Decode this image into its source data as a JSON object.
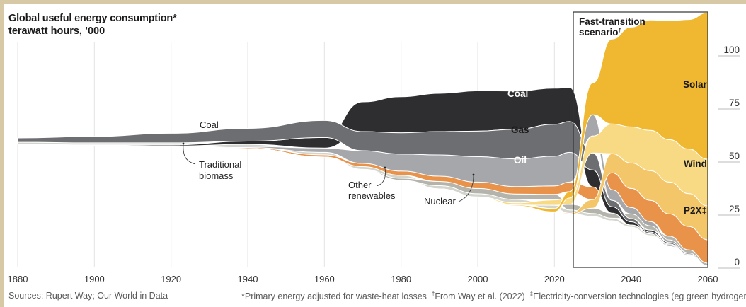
{
  "chart_data": {
    "type": "area",
    "title": "Global useful energy consumption*",
    "subtitle": "terawatt hours, '000",
    "xlabel": "",
    "ylabel": "terawatt hours, '000",
    "xlim": [
      1880,
      2060
    ],
    "ylim": [
      0,
      120
    ],
    "x_ticks": [
      1880,
      1900,
      1920,
      1940,
      1960,
      1980,
      2000,
      2020,
      2040,
      2060
    ],
    "y_ticks": [
      0,
      25,
      50,
      75,
      100
    ],
    "y_axis_side": "right",
    "grid": true,
    "scenario_box": {
      "label": "Fast-transition scenario",
      "label_mark": "†",
      "start_year": 2024,
      "end_year": 2060
    },
    "x": [
      1880,
      1900,
      1920,
      1940,
      1960,
      1970,
      1980,
      1990,
      2000,
      2010,
      2020,
      2024,
      2030,
      2035,
      2040,
      2045,
      2050,
      2055,
      2060
    ],
    "baseline": [
      58,
      57.5,
      57,
      56,
      52,
      46,
      41,
      37,
      33,
      29,
      26,
      25,
      24,
      22,
      19,
      15,
      10,
      5,
      0
    ],
    "series": [
      {
        "name": "Traditional biomass",
        "color": "#d3d4cb",
        "values": [
          1.0,
          1.0,
          1.0,
          1.0,
          1.2,
          1.3,
          1.4,
          1.5,
          1.5,
          1.6,
          1.6,
          1.6,
          1.4,
          1.2,
          1.0,
          0.8,
          0.6,
          0.4,
          0.2
        ]
      },
      {
        "name": "Nuclear",
        "color": "#b4b4ac",
        "values": [
          0,
          0,
          0,
          0,
          0,
          0.2,
          1.0,
          2.0,
          2.5,
          2.6,
          2.6,
          2.6,
          2.5,
          2.4,
          2.2,
          2.0,
          1.8,
          1.5,
          1.2
        ]
      },
      {
        "name": "Other renewables",
        "color": "#e8924a",
        "values": [
          0,
          0,
          0,
          0.5,
          1.0,
          1.5,
          2.0,
          2.5,
          3.0,
          3.5,
          4.0,
          4.5,
          6.0,
          8.0,
          9.0,
          10.0,
          10.5,
          11.0,
          11.0
        ]
      },
      {
        "name": "Oil",
        "color": "#2e2e30",
        "values": [
          0,
          0.2,
          0.5,
          1.5,
          5.0,
          14.0,
          17.0,
          18.0,
          19.0,
          18.0,
          17.0,
          16.0,
          8.0,
          3.0,
          1.5,
          1.0,
          0.6,
          0.4,
          0.2
        ]
      },
      {
        "name": "Gas",
        "color": "#a6a7aa",
        "values": [
          0,
          0,
          0.2,
          0.5,
          2.0,
          6.0,
          8.0,
          10.0,
          12.0,
          13.0,
          14.0,
          14.0,
          10.0,
          5.0,
          3.0,
          2.0,
          1.2,
          0.7,
          0.3
        ]
      },
      {
        "name": "Coal",
        "color": "#6d6e71",
        "values": [
          2.0,
          3.0,
          4.5,
          6.0,
          8.0,
          9.0,
          10.0,
          11.0,
          12.0,
          14.0,
          15.0,
          14.5,
          8.0,
          3.0,
          1.5,
          0.8,
          0.5,
          0.3,
          0.1
        ]
      },
      {
        "name": "P2X‡",
        "color": "#f4c66a",
        "values": [
          0,
          0,
          0,
          0,
          0,
          0,
          0,
          0,
          0,
          0,
          0.2,
          0.5,
          4.0,
          9.0,
          12.0,
          14.0,
          15.0,
          15.5,
          16.0
        ]
      },
      {
        "name": "Wind",
        "color": "#f8da84",
        "values": [
          0,
          0,
          0,
          0,
          0,
          0,
          0,
          0,
          0.2,
          1.0,
          2.5,
          3.0,
          8.0,
          14.0,
          17.0,
          19.0,
          20.0,
          21.0,
          22.0
        ]
      },
      {
        "name": "Solar",
        "color": "#f0b731",
        "values": [
          0,
          0,
          0,
          0,
          0,
          0,
          0,
          0,
          0,
          0.4,
          1.5,
          3.0,
          15.0,
          40.0,
          47.0,
          52.0,
          56.0,
          61.0,
          69.0
        ]
      }
    ],
    "annotations": [
      {
        "text": "Coal",
        "target": "Coal"
      },
      {
        "text": "Traditional biomass",
        "target": "Traditional biomass"
      },
      {
        "text": "Other renewables",
        "target": "Other renewables"
      },
      {
        "text": "Nuclear",
        "target": "Nuclear"
      },
      {
        "text": "Coal",
        "target": "Coal"
      },
      {
        "text": "Gas",
        "target": "Gas"
      },
      {
        "text": "Oil",
        "target": "Oil"
      },
      {
        "text": "Solar",
        "target": "Solar"
      },
      {
        "text": "Wind",
        "target": "Wind"
      },
      {
        "text": "P2X‡",
        "target": "P2X‡"
      }
    ]
  },
  "labels": {
    "title": "Global useful energy consumption*",
    "subtitle": "terawatt hours, ’000",
    "box_title_1": "Fast-transition",
    "box_title_2": "scenario",
    "box_title_mark": "†",
    "coal_hist": "Coal",
    "biomass_1": "Traditional",
    "biomass_2": "biomass",
    "renew_1": "Other",
    "renew_2": "renewables",
    "nuclear": "Nuclear",
    "coal": "Coal",
    "gas": "Gas",
    "oil": "Oil",
    "solar": "Solar",
    "wind": "Wind",
    "p2x": "P2X‡"
  },
  "footer": {
    "sources": "Sources: Rupert Way; Our World in Data",
    "notes": "*Primary energy adjusted for waste-heat losses  ",
    "note2_mark": "†",
    "note2": "From Way et al. (2022)  ",
    "note3_mark": "‡",
    "note3": "Electricity-conversion technologies (eg green hydrogen)"
  }
}
